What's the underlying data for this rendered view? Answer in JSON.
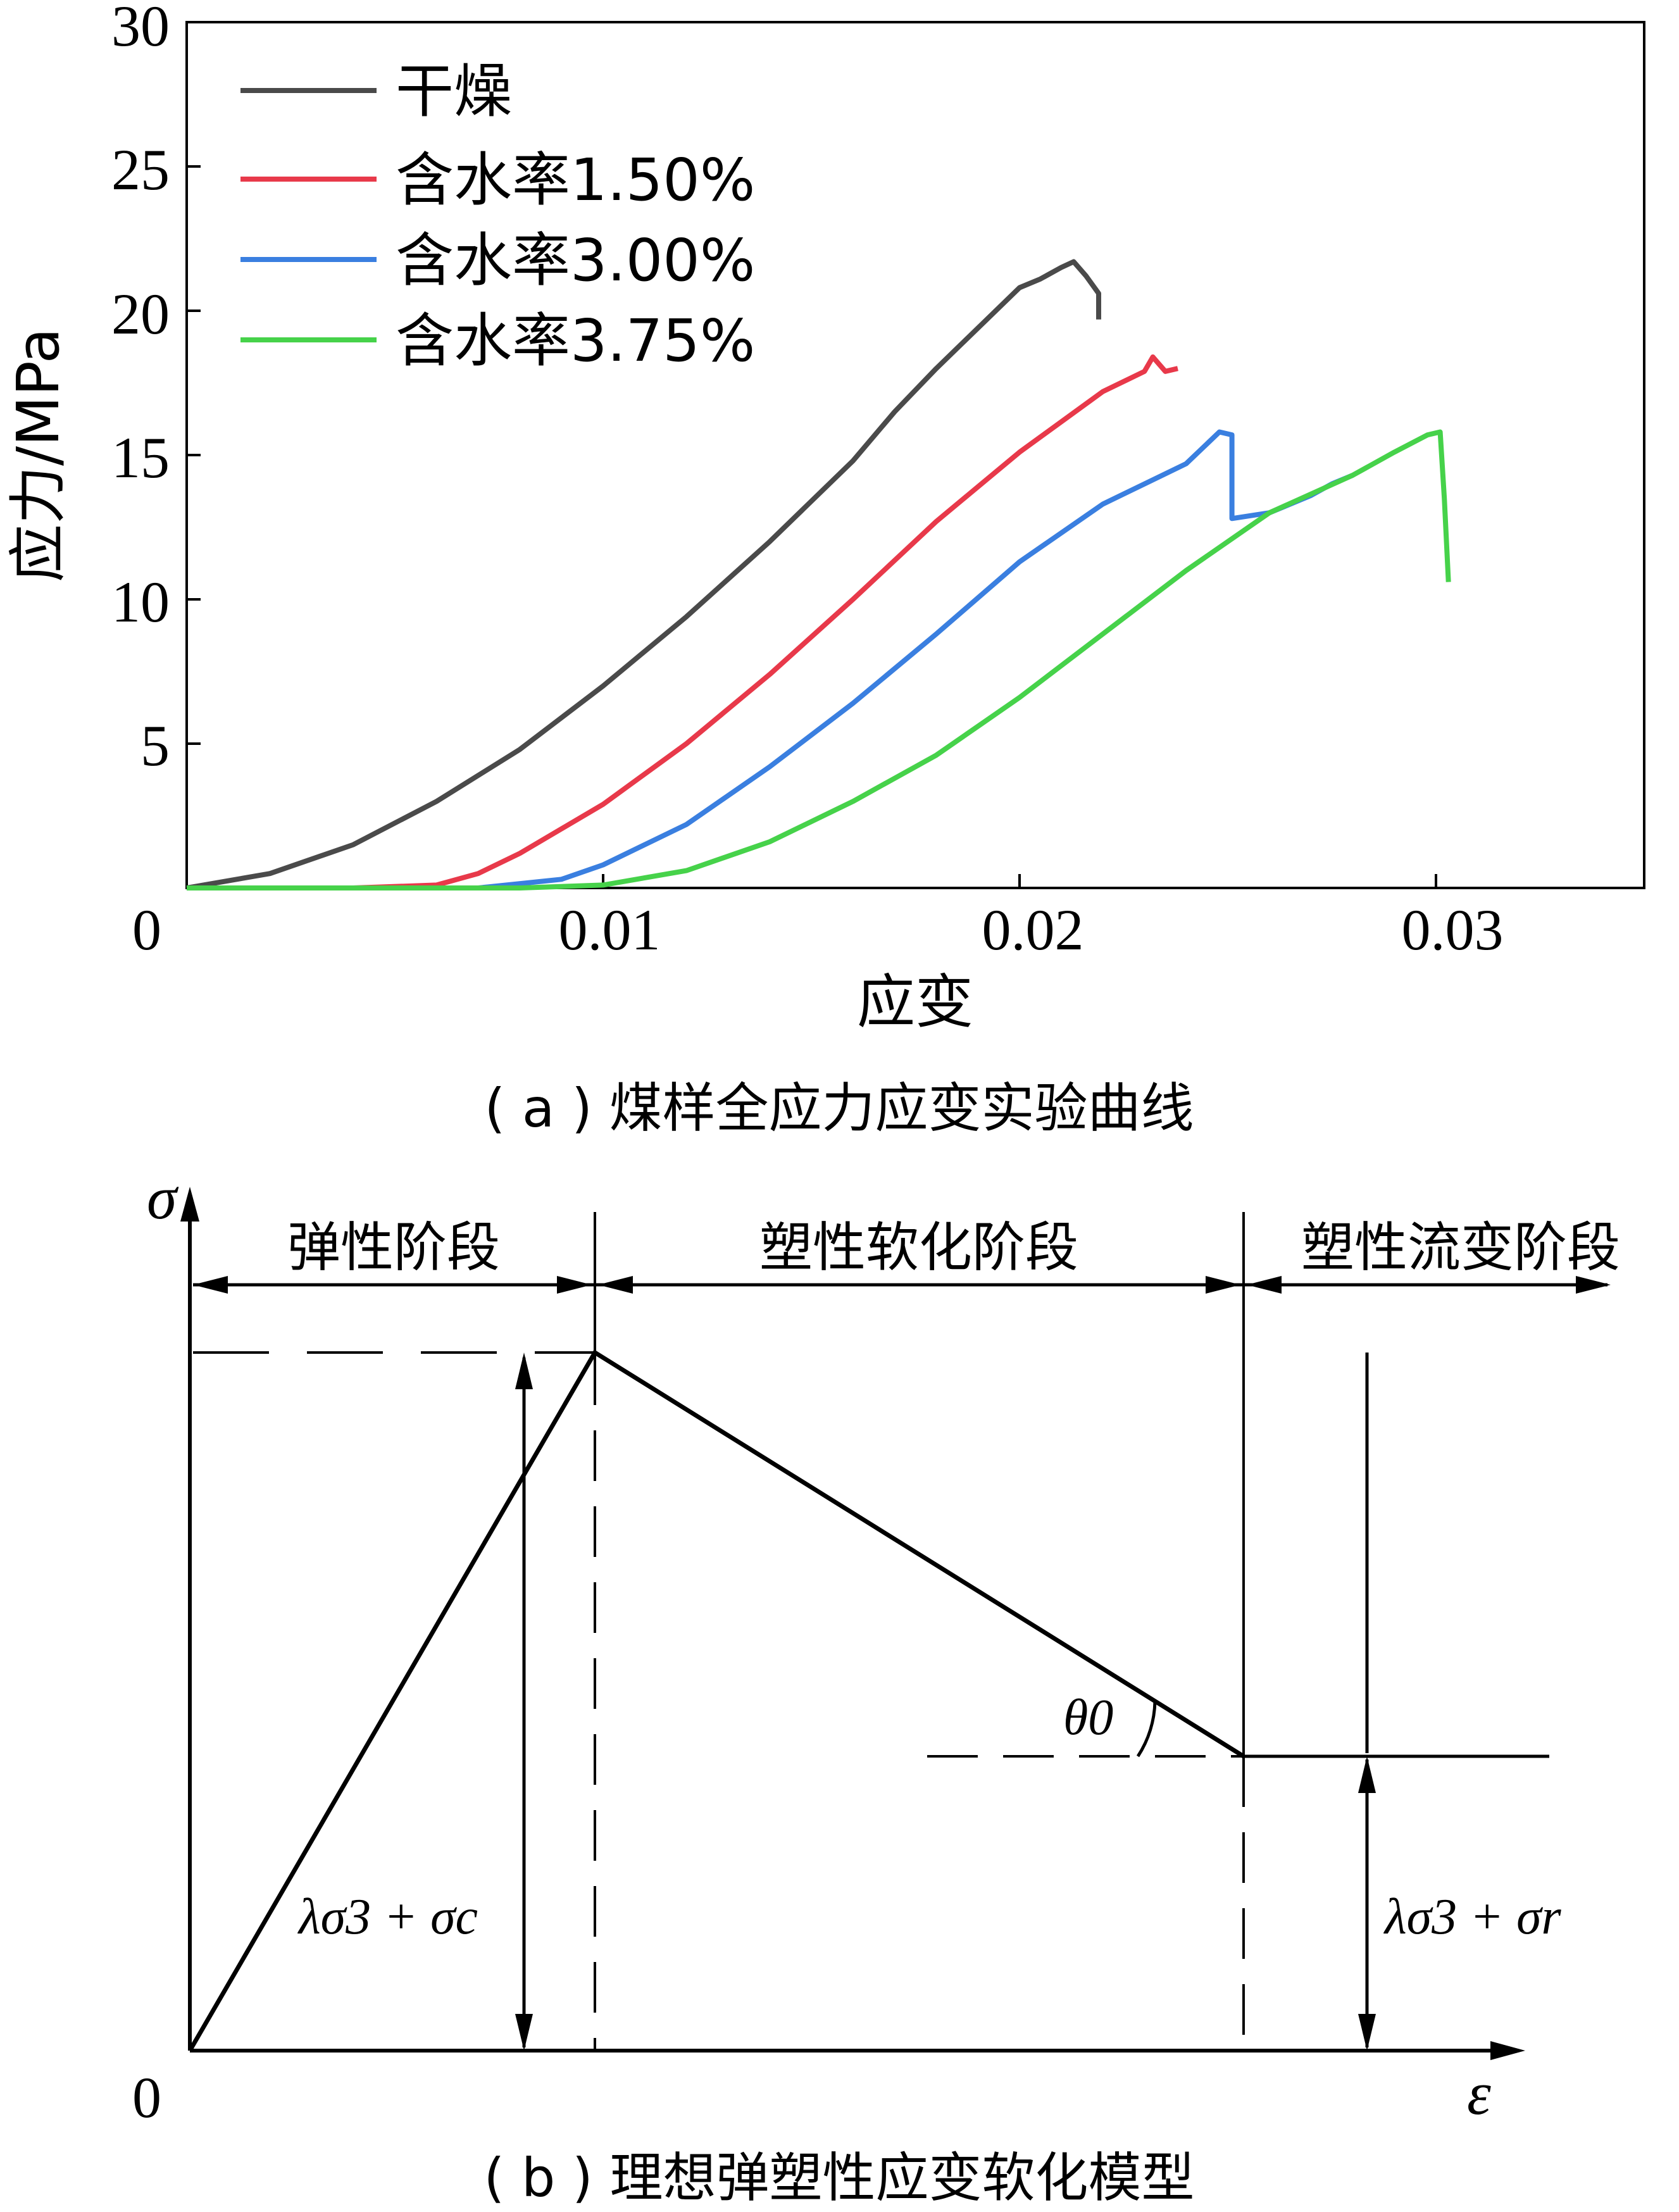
{
  "chart_data": [
    {
      "type": "line",
      "xlabel": "应变",
      "ylabel": "应力/MPa",
      "xlim": [
        0,
        0.035
      ],
      "ylim": [
        0,
        30
      ],
      "x_ticks": [
        "0",
        "0.01",
        "0.02",
        "0.03"
      ],
      "y_ticks": [
        "5",
        "10",
        "15",
        "20",
        "25",
        "30"
      ],
      "grid": false,
      "legend_position": "top-left",
      "series": [
        {
          "name": "干燥",
          "color": "#4a4a4a",
          "x": [
            0,
            0.002,
            0.004,
            0.006,
            0.008,
            0.01,
            0.012,
            0.014,
            0.016,
            0.017,
            0.018,
            0.019,
            0.02,
            0.0205,
            0.021,
            0.0213,
            0.0216,
            0.0219,
            0.0219
          ],
          "y": [
            0,
            0.5,
            1.5,
            3.0,
            4.8,
            7.0,
            9.4,
            12.0,
            14.8,
            16.5,
            18.0,
            19.4,
            20.8,
            21.1,
            21.5,
            21.7,
            21.2,
            20.6,
            19.7
          ]
        },
        {
          "name": "含水率1.50%",
          "color": "#e8394a",
          "x": [
            0,
            0.004,
            0.006,
            0.007,
            0.008,
            0.01,
            0.012,
            0.014,
            0.016,
            0.018,
            0.02,
            0.022,
            0.023,
            0.0232,
            0.0235,
            0.0238
          ],
          "y": [
            0,
            0,
            0.1,
            0.5,
            1.2,
            2.9,
            5.0,
            7.4,
            10.0,
            12.7,
            15.1,
            17.2,
            17.9,
            18.4,
            17.9,
            18.0
          ]
        },
        {
          "name": "含水率3.00%",
          "color": "#3a7fe0",
          "x": [
            0,
            0.004,
            0.007,
            0.009,
            0.01,
            0.012,
            0.014,
            0.016,
            0.018,
            0.02,
            0.022,
            0.024,
            0.0248,
            0.0251,
            0.0251,
            0.026,
            0.027,
            0.0275,
            0.028
          ],
          "y": [
            0,
            0,
            0,
            0.3,
            0.8,
            2.2,
            4.2,
            6.4,
            8.8,
            11.3,
            13.3,
            14.7,
            15.8,
            15.7,
            12.8,
            13.0,
            13.6,
            14.0,
            14.3
          ]
        },
        {
          "name": "含水率3.75%",
          "color": "#46d24a",
          "x": [
            0,
            0.008,
            0.01,
            0.012,
            0.014,
            0.016,
            0.018,
            0.02,
            0.022,
            0.024,
            0.026,
            0.028,
            0.029,
            0.0298,
            0.0301,
            0.0302,
            0.0303
          ],
          "y": [
            0,
            0,
            0.1,
            0.6,
            1.6,
            3.0,
            4.6,
            6.6,
            8.8,
            11.0,
            13.0,
            14.3,
            15.1,
            15.7,
            15.8,
            13.5,
            10.6
          ]
        }
      ],
      "caption": "( a ) 煤样全应力应变实验曲线"
    },
    {
      "type": "diagram",
      "description": "理想弹塑性应变软化模型",
      "stages": [
        "弹性阶段",
        "塑性软化阶段",
        "塑性流变阶段"
      ],
      "y_axis_symbol": "σ",
      "x_axis_symbol": "ε",
      "origin": "0",
      "peak_label": "λσ3 + σc",
      "residual_label": "λσ3 + σr",
      "angle_label": "θ0",
      "caption": "( b ) 理想弹塑性应变软化模型"
    }
  ]
}
